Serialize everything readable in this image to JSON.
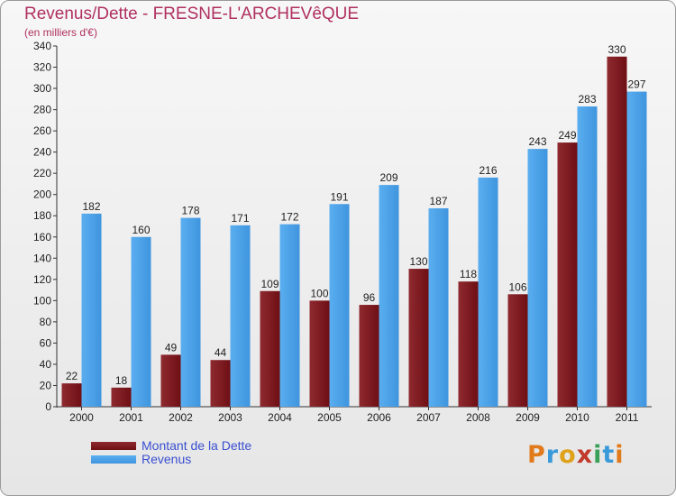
{
  "header": {
    "title": "Revenus/Dette - FRESNE-L'ARCHEVêQUE",
    "subtitle": "(en milliers d'€)"
  },
  "logo": {
    "text": "Proxiti"
  },
  "colors": {
    "debt": "#6e0f14",
    "revenue": "#3f95de",
    "title": "#b03060",
    "legend_text": "#3a4fd0"
  },
  "chart_data": {
    "type": "bar",
    "categories": [
      "2000",
      "2001",
      "2002",
      "2003",
      "2004",
      "2005",
      "2006",
      "2007",
      "2008",
      "2009",
      "2010",
      "2011"
    ],
    "series": [
      {
        "name": "Montant de la Dette",
        "values": [
          22,
          18,
          49,
          44,
          109,
          100,
          96,
          130,
          118,
          106,
          249,
          330
        ]
      },
      {
        "name": "Revenus",
        "values": [
          182,
          160,
          178,
          171,
          172,
          191,
          209,
          187,
          216,
          243,
          283,
          297
        ]
      }
    ],
    "ylim": [
      0,
      340
    ],
    "yticks": [
      0,
      20,
      40,
      60,
      80,
      100,
      120,
      140,
      160,
      180,
      200,
      220,
      240,
      260,
      280,
      300,
      320,
      340
    ],
    "grid": false,
    "legend_placement": "bottom-left"
  }
}
